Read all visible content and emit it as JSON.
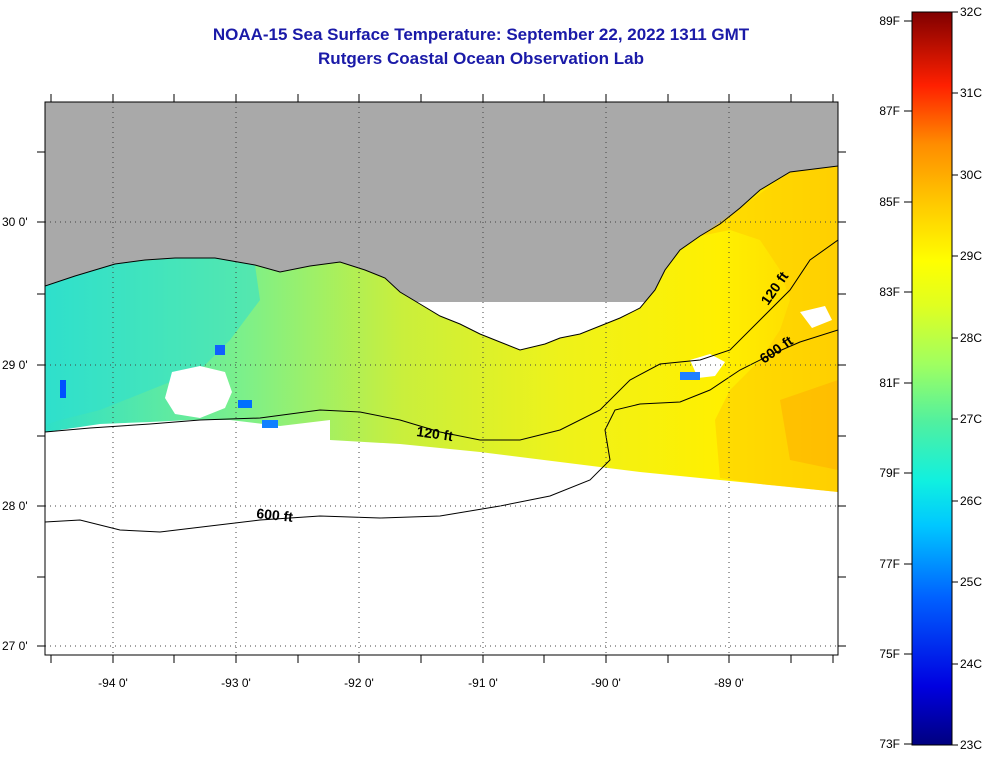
{
  "title": {
    "line1": "NOAA-15 Sea Surface Temperature:  September 22, 2022 1311 GMT",
    "line2": "Rutgers Coastal Ocean Observation Lab"
  },
  "map": {
    "latitude_labels": [
      {
        "value": 30,
        "label": "30 0'"
      },
      {
        "value": 29,
        "label": "29 0'"
      },
      {
        "value": 28,
        "label": "28 0'"
      },
      {
        "value": 27,
        "label": "27 0'"
      }
    ],
    "longitude_labels": [
      {
        "value": -94,
        "label": "-94 0'"
      },
      {
        "value": -93,
        "label": "-93 0'"
      },
      {
        "value": -92,
        "label": "-92 0'"
      },
      {
        "value": -91,
        "label": "-91 0'"
      },
      {
        "value": -90,
        "label": "-90 0'"
      },
      {
        "value": -89,
        "label": "-89 0'"
      }
    ],
    "contour_labels": [
      "120 ft",
      "600 ft",
      "120 ft",
      "600 ft"
    ],
    "colors": {
      "land": "#a9a9a9",
      "no_data": "#ffffff",
      "cloud": "#ffffff"
    }
  },
  "colorbar": {
    "fahrenheit_labels": [
      "89F",
      "87F",
      "85F",
      "83F",
      "81F",
      "79F",
      "77F",
      "75F",
      "73F"
    ],
    "celsius_labels": [
      "32C",
      "31C",
      "30C",
      "29C",
      "28C",
      "27C",
      "26C",
      "25C",
      "24C",
      "23C"
    ],
    "colors": [
      "#00007f",
      "#0000ff",
      "#0080ff",
      "#00ffff",
      "#40f0c0",
      "#80ff80",
      "#c0ff40",
      "#ffff00",
      "#ffbf00",
      "#ff8000",
      "#ff0000",
      "#7f0000"
    ]
  }
}
